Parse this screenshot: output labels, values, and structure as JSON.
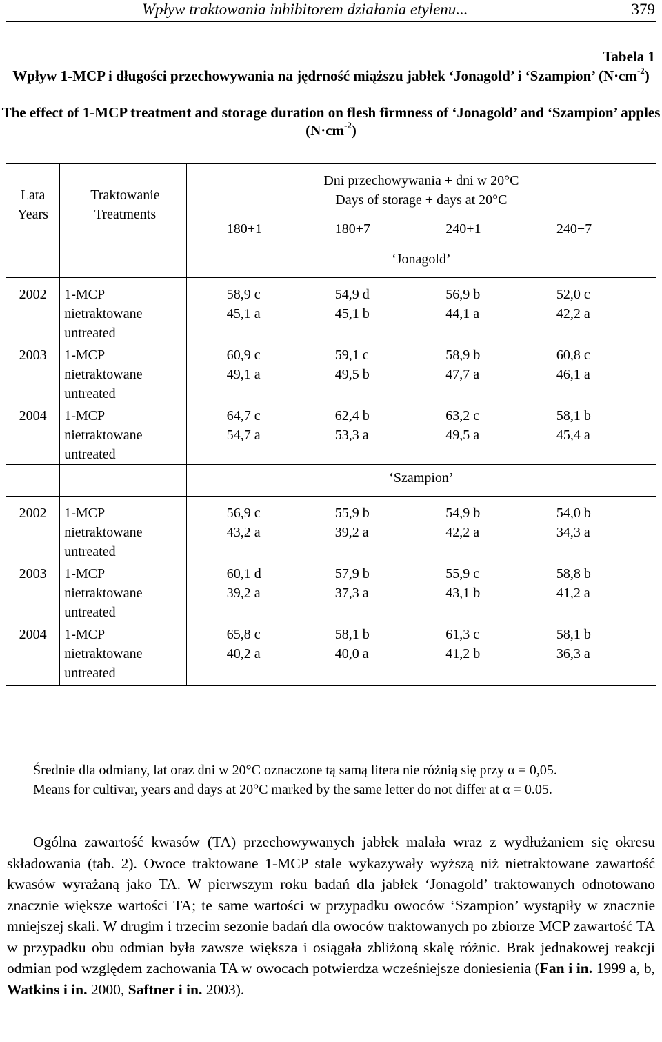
{
  "header": {
    "running_title": "Wpływ traktowania inhibitorem działania etylenu...",
    "page_number": "379"
  },
  "table": {
    "label": "Tabela 1",
    "caption_pl": "Wpływ 1-MCP i długości przechowywania na jędrność miąższu jabłek ‘Jonagold’ i ‘Szampion’ (N·cm",
    "caption_en": "The effect of 1-MCP treatment and storage duration on flesh firmness of ‘Jonagold’ and ‘Szampion’ apples (N·cm",
    "unit_exp": "-2",
    "unit_close": ")",
    "col_years_pl": "Lata",
    "col_years_en": "Years",
    "col_treat_pl": "Traktowanie",
    "col_treat_en": "Treatments",
    "col_days_pl": "Dni przechowywania + dni w 20°C",
    "col_days_en": "Days of storage + days at 20°C",
    "periods": [
      "180+1",
      "180+7",
      "240+1",
      "240+7"
    ],
    "treatment_mcp": "1-MCP",
    "treatment_ctrl_pl": "nietraktowane",
    "treatment_ctrl_en": "untreated",
    "sections": [
      {
        "cultivar": "‘Jonagold’",
        "groups": [
          {
            "year": "2002",
            "mcp": [
              "58,9 c",
              "54,9 d",
              "56,9 b",
              "52,0 c"
            ],
            "ctrl": [
              "45,1 a",
              "45,1 b",
              "44,1 a",
              "42,2 a"
            ]
          },
          {
            "year": "2003",
            "mcp": [
              "60,9 c",
              "59,1 c",
              "58,9 b",
              "60,8 c"
            ],
            "ctrl": [
              "49,1 a",
              "49,5 b",
              "47,7 a",
              "46,1 a"
            ]
          },
          {
            "year": "2004",
            "mcp": [
              "64,7 c",
              "62,4 b",
              "63,2 c",
              "58,1 b"
            ],
            "ctrl": [
              "54,7 a",
              "53,3 a",
              "49,5 a",
              "45,4 a"
            ]
          }
        ]
      },
      {
        "cultivar": "‘Szampion’",
        "groups": [
          {
            "year": "2002",
            "mcp": [
              "56,9 c",
              "55,9 b",
              "54,9 b",
              "54,0 b"
            ],
            "ctrl": [
              "43,2 a",
              "39,2 a",
              "42,2 a",
              "34,3 a"
            ]
          },
          {
            "year": "2003",
            "mcp": [
              "60,1 d",
              "57,9 b",
              "55,9 c",
              "58,8 b"
            ],
            "ctrl": [
              "39,2 a",
              "37,3 a",
              "43,1 b",
              "41,2 a"
            ]
          },
          {
            "year": "2004",
            "mcp": [
              "65,8 c",
              "58,1 b",
              "61,3 c",
              "58,1 b"
            ],
            "ctrl": [
              "40,2 a",
              "40,0 a",
              "41,2 b",
              "36,3 a"
            ]
          }
        ]
      }
    ],
    "footnote_pl": "Średnie dla odmiany, lat oraz dni w 20°C oznaczone tą samą litera nie różnią się przy α = 0,05.",
    "footnote_en": "Means for cultivar, years and days at 20°C marked by the same letter do not differ at α = 0.05."
  },
  "body": {
    "text_1": "Ogólna zawartość kwasów (TA) przechowywanych jabłek malała wraz z wydłużaniem się okresu składowania (tab. 2). Owoce traktowane 1-MCP stale wykazywały wyższą niż nietraktowane zawartość kwasów wyrażaną jako TA. W pierwszym roku badań dla jabłek ‘Jonagold’ traktowanych odnotowano znacznie większe wartości TA; te same wartości w przypadku owoców ‘Szampion’ wystąpiły w znacznie mniejszej skali. W drugim i trzecim sezonie badań dla owoców traktowanych po zbiorze MCP zawartość TA w przypadku obu odmian była zawsze większa i osiągała zbliżoną skalę różnic. Brak jednakowej reakcji odmian pod względem zachowania TA w owocach potwierdza wcześniejsze doniesienia (",
    "cite_1": "Fan i in.",
    "text_2": " 1999 a, b, ",
    "cite_2": "Watkins i in.",
    "text_3": " 2000, ",
    "cite_3": "Saftner i in.",
    "text_4": " 2003)."
  }
}
